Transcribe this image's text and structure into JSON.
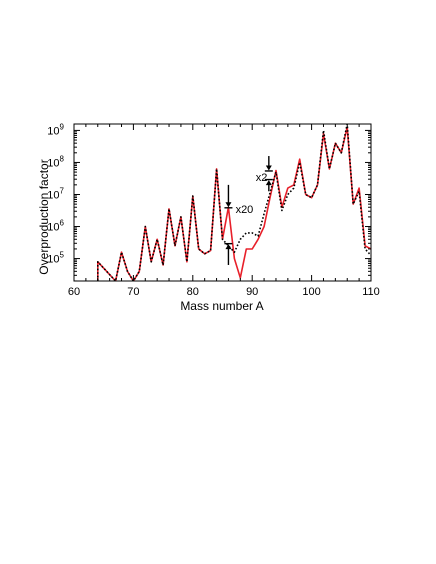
{
  "chart_data": {
    "type": "line",
    "title": "",
    "xlabel": "Mass number A",
    "ylabel": "Overproduction factor",
    "xlim": [
      60,
      110
    ],
    "ylim_log10": [
      4.3,
      9.2
    ],
    "yscale": "log",
    "grid": false,
    "x_ticks": [
      "60",
      "70",
      "80",
      "90",
      "100",
      "110"
    ],
    "y_ticks": [
      {
        "base": "10",
        "exp": "5",
        "log": 5
      },
      {
        "base": "10",
        "exp": "6",
        "log": 6
      },
      {
        "base": "10",
        "exp": "7",
        "log": 7
      },
      {
        "base": "10",
        "exp": "8",
        "log": 8
      },
      {
        "base": "10",
        "exp": "9",
        "log": 9
      }
    ],
    "series": [
      {
        "style": "solid",
        "color": "#e8202a",
        "x": [
          64,
          64,
          67,
          68,
          69,
          70,
          71,
          72,
          73,
          74,
          75,
          76,
          77,
          78,
          79,
          80,
          81,
          82,
          83,
          84,
          85,
          86,
          87,
          88,
          89,
          90,
          91,
          92,
          93,
          94,
          95,
          96,
          97,
          98,
          99,
          100,
          101,
          102,
          103,
          104,
          105,
          106,
          107,
          108,
          109,
          110
        ],
        "log10_y": [
          4.3,
          4.9,
          4.3,
          5.2,
          4.6,
          4.3,
          4.6,
          6.0,
          4.9,
          5.6,
          4.8,
          6.55,
          5.4,
          6.3,
          4.9,
          6.95,
          5.3,
          5.15,
          5.25,
          7.8,
          5.6,
          6.6,
          5.0,
          4.4,
          5.3,
          5.3,
          5.6,
          6.0,
          6.9,
          7.75,
          6.6,
          7.2,
          7.3,
          8.1,
          7.0,
          6.9,
          7.3,
          8.9,
          7.8,
          8.6,
          8.3,
          9.1,
          6.7,
          7.2,
          5.4,
          5.3
        ]
      },
      {
        "style": "dotted",
        "color": "#000000",
        "x": [
          64,
          64,
          67,
          68,
          69,
          70,
          71,
          72,
          73,
          74,
          75,
          76,
          77,
          78,
          79,
          80,
          81,
          82,
          83,
          84,
          85,
          86,
          87,
          88,
          89,
          90,
          91,
          92,
          93,
          94,
          95,
          96,
          97,
          98,
          99,
          100,
          101,
          102,
          103,
          104,
          105,
          106,
          107,
          108,
          109,
          110
        ],
        "log10_y": [
          4.3,
          4.9,
          4.3,
          5.2,
          4.6,
          4.3,
          4.6,
          6.0,
          4.9,
          5.6,
          4.8,
          6.55,
          5.4,
          6.3,
          4.9,
          6.95,
          5.3,
          5.15,
          5.25,
          7.8,
          5.6,
          5.4,
          5.2,
          5.6,
          5.8,
          5.8,
          5.7,
          6.4,
          7.05,
          7.7,
          6.5,
          7.0,
          7.2,
          8.0,
          7.0,
          6.9,
          7.3,
          9.0,
          7.8,
          8.6,
          8.3,
          9.2,
          6.7,
          7.1,
          5.3,
          5.1
        ]
      }
    ],
    "annotations": [
      {
        "text": "x20",
        "x": 87.2,
        "log10_y": 6.55
      },
      {
        "text": "x2",
        "x": 90.6,
        "log10_y": 7.55
      }
    ]
  }
}
